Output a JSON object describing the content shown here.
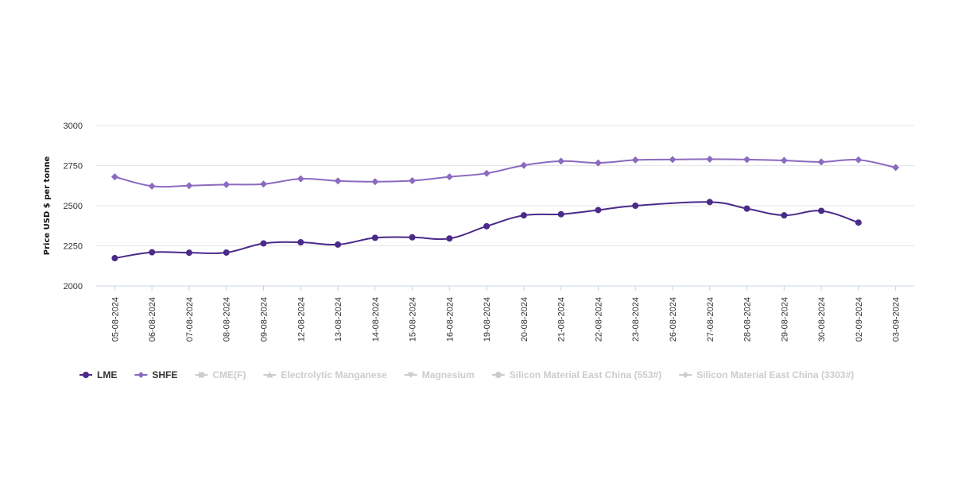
{
  "chart_data": {
    "type": "line",
    "title": "",
    "xlabel": "",
    "ylabel": "Price USD $ per tonne",
    "ylim": [
      2000,
      3000
    ],
    "yticks": [
      2000,
      2250,
      2500,
      2750,
      3000
    ],
    "categories": [
      "05-08-2024",
      "06-08-2024",
      "07-08-2024",
      "08-08-2024",
      "09-08-2024",
      "12-08-2024",
      "13-08-2024",
      "14-08-2024",
      "15-08-2024",
      "16-08-2024",
      "19-08-2024",
      "20-08-2024",
      "21-08-2024",
      "22-08-2024",
      "23-08-2024",
      "26-08-2024",
      "27-08-2024",
      "28-08-2024",
      "29-08-2024",
      "30-08-2024",
      "02-09-2024",
      "03-09-2024"
    ],
    "series": [
      {
        "name": "LME",
        "color": "#4b2a8a",
        "marker": "circle",
        "values": [
          2173,
          2210,
          2207,
          2208,
          2265,
          2272,
          2258,
          2300,
          2303,
          2296,
          2372,
          2440,
          2447,
          2473,
          2500,
          null,
          2523,
          2482,
          2440,
          2468,
          2395,
          null
        ]
      },
      {
        "name": "SHFE",
        "color": "#8b6ac0",
        "marker": "diamond",
        "values": [
          2680,
          2622,
          2625,
          2632,
          2635,
          2668,
          2655,
          2650,
          2656,
          2680,
          2702,
          2752,
          2778,
          2767,
          2785,
          2788,
          2790,
          2788,
          2782,
          2773,
          2786,
          2738
        ]
      }
    ],
    "grid": true,
    "legend_position": "bottom-left"
  },
  "legend": [
    {
      "label": "LME",
      "marker": "circle",
      "active": true,
      "color": "#4b2a8a"
    },
    {
      "label": "SHFE",
      "marker": "diamond",
      "active": true,
      "color": "#8b6ac0"
    },
    {
      "label": "CME(F)",
      "marker": "square",
      "active": false,
      "color": "#cccccc"
    },
    {
      "label": "Electrolytic Manganese",
      "marker": "triangle",
      "active": false,
      "color": "#cccccc"
    },
    {
      "label": "Magnesium",
      "marker": "triangle-down",
      "active": false,
      "color": "#cccccc"
    },
    {
      "label": "Silicon Material East China (553#)",
      "marker": "circle",
      "active": false,
      "color": "#cccccc"
    },
    {
      "label": "Silicon Material East China (3303#)",
      "marker": "diamond",
      "active": false,
      "color": "#cccccc"
    }
  ]
}
